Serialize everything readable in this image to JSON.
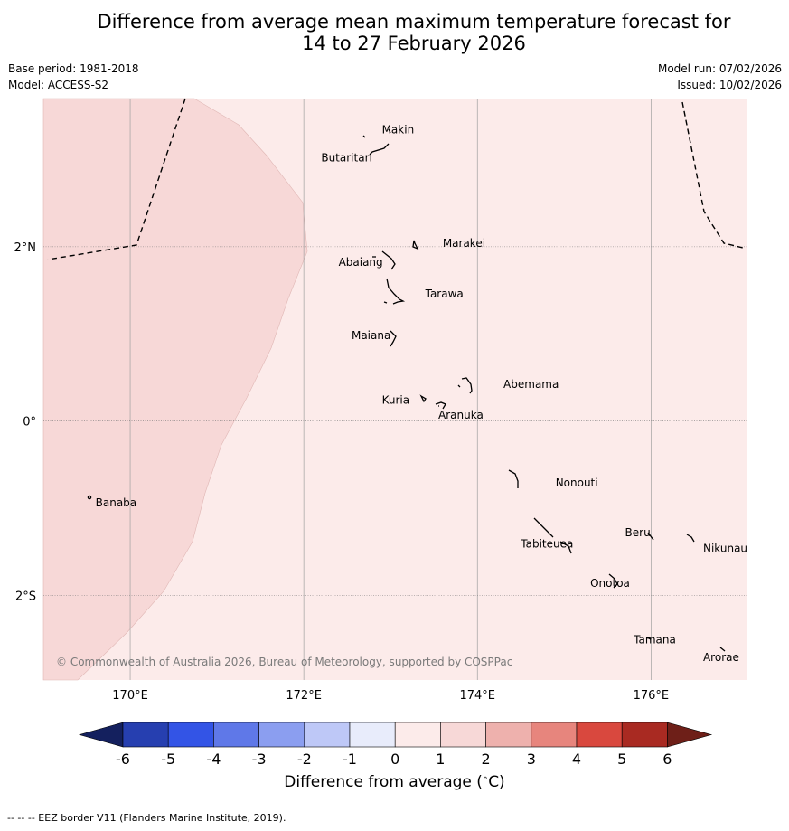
{
  "title_line1": "Difference from average mean maximum temperature forecast for",
  "title_line2": "14 to 27 February 2026",
  "meta": {
    "base_period": "Base period: 1981-2018",
    "model": "Model: ACCESS-S2",
    "model_run": "Model run: 07/02/2026",
    "issued": "Issued: 10/02/2026"
  },
  "map": {
    "lon_range": [
      169.0,
      177.1
    ],
    "lat_range": [
      -2.97,
      3.7
    ],
    "lon_ticks": [
      {
        "v": 170,
        "label": "170°E"
      },
      {
        "v": 172,
        "label": "172°E"
      },
      {
        "v": 174,
        "label": "174°E"
      },
      {
        "v": 176,
        "label": "176°E"
      }
    ],
    "lat_ticks": [
      {
        "v": 2,
        "label": "2°N"
      },
      {
        "v": 0,
        "label": "0°"
      },
      {
        "v": -2,
        "label": "2°S"
      }
    ],
    "background_category": "0 to 1",
    "warm_region_category": "1 to 2",
    "copyright": "© Commonwealth of Australia 2026, Bureau of Meteorology, supported by COSPPac",
    "places": [
      {
        "name": "Makin",
        "lon": 172.9,
        "lat": 3.3
      },
      {
        "name": "Butaritari",
        "lon": 172.2,
        "lat": 2.98
      },
      {
        "name": "Marakei",
        "lon": 173.6,
        "lat": 2.0
      },
      {
        "name": "Abaiang",
        "lon": 172.4,
        "lat": 1.78
      },
      {
        "name": "Tarawa",
        "lon": 173.4,
        "lat": 1.42
      },
      {
        "name": "Maiana",
        "lon": 172.55,
        "lat": 0.94
      },
      {
        "name": "Abemama",
        "lon": 174.3,
        "lat": 0.38
      },
      {
        "name": "Kuria",
        "lon": 172.9,
        "lat": 0.2
      },
      {
        "name": "Aranuka",
        "lon": 173.55,
        "lat": 0.03
      },
      {
        "name": "Banaba",
        "lon": 169.6,
        "lat": -0.98
      },
      {
        "name": "Nonouti",
        "lon": 174.9,
        "lat": -0.75
      },
      {
        "name": "Beru",
        "lon": 175.7,
        "lat": -1.32
      },
      {
        "name": "Tabiteuea",
        "lon": 174.5,
        "lat": -1.45
      },
      {
        "name": "Nikunau",
        "lon": 176.6,
        "lat": -1.5
      },
      {
        "name": "Onotoa",
        "lon": 175.3,
        "lat": -1.9
      },
      {
        "name": "Tamana",
        "lon": 175.8,
        "lat": -2.55
      },
      {
        "name": "Arorae",
        "lon": 176.6,
        "lat": -2.75
      }
    ]
  },
  "colorbar": {
    "ticks": [
      "-6",
      "-5",
      "-4",
      "-3",
      "-2",
      "-1",
      "0",
      "1",
      "2",
      "3",
      "4",
      "5",
      "6"
    ],
    "colors": [
      "#263fb0",
      "#3354e6",
      "#5f78e8",
      "#8b9ef0",
      "#bec8f7",
      "#e8ecfb",
      "#fcebea",
      "#f7d8d7",
      "#eeb1ad",
      "#e7857d",
      "#d9483e",
      "#a92a22"
    ],
    "under_color": "#14205e",
    "over_color": "#6e1f18",
    "label": "Difference from average (",
    "label_unit": "C)"
  },
  "footer": "--  --  -- EEZ border V11 (Flanders Marine Institute, 2019)."
}
